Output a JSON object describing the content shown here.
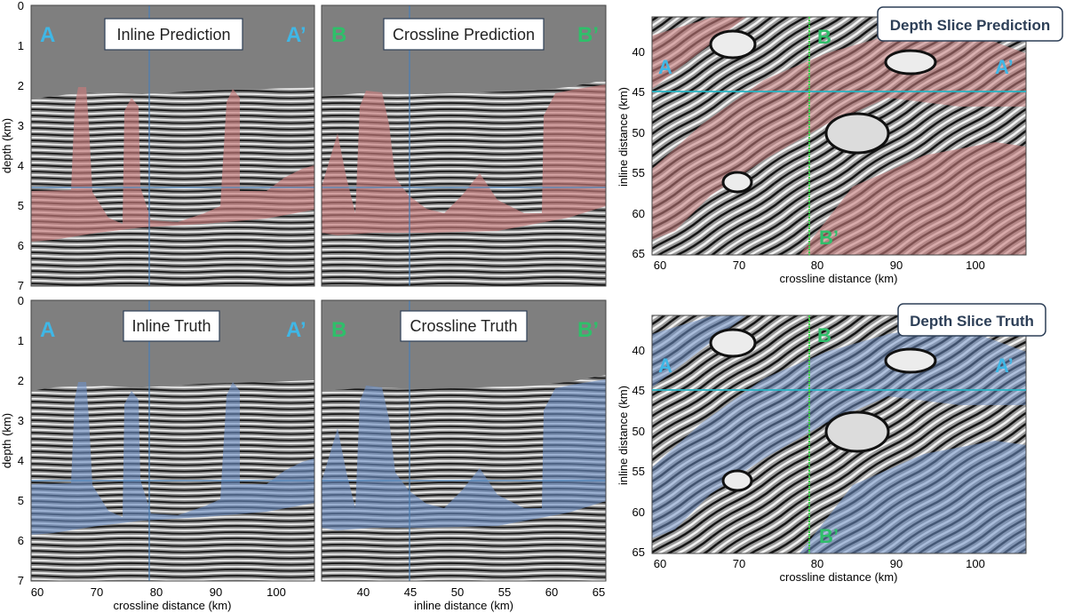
{
  "colors": {
    "background_gray": "#7f7f7f",
    "salt_pred": "#c77b7b",
    "salt_truth": "#6d8fc7",
    "label_blue": "#3fb7e6",
    "label_green": "#2fbf6a",
    "line_blue": "#4a7fb5",
    "line_cyan": "#25b5c4",
    "line_green": "#3fd04a",
    "title_border": "#2d3f57"
  },
  "panels": {
    "inline_pred": {
      "title": "Inline Prediction",
      "left_label": "A",
      "right_label": "A’"
    },
    "crossline_pred": {
      "title": "Crossline Prediction",
      "left_label": "B",
      "right_label": "B’"
    },
    "inline_truth": {
      "title": "Inline Truth",
      "left_label": "A",
      "right_label": "A’"
    },
    "crossline_truth": {
      "title": "Crossline Truth",
      "left_label": "B",
      "right_label": "B’"
    },
    "depth_pred": {
      "title": "Depth Slice Prediction",
      "a": "A",
      "a_prime": "A’",
      "b": "B",
      "b_prime": "B’"
    },
    "depth_truth": {
      "title": "Depth Slice Truth",
      "a": "A",
      "a_prime": "A’",
      "b": "B",
      "b_prime": "B’"
    }
  },
  "axes": {
    "depth_label": "depth (km)",
    "depth_ticks": [
      "0",
      "1",
      "2",
      "3",
      "4",
      "5",
      "6",
      "7"
    ],
    "depth_range": [
      0,
      7
    ],
    "crossline_label": "crossline distance (km)",
    "crossline_ticks": [
      "60",
      "70",
      "80",
      "90",
      "100"
    ],
    "crossline_range": [
      58.5,
      106
    ],
    "inline_label": "inline distance (km)",
    "inline_section_ticks": [
      "40",
      "45",
      "50",
      "55",
      "60",
      "65"
    ],
    "inline_section_range": [
      35.5,
      65.7
    ],
    "inline_slice_ticks": [
      "40",
      "45",
      "50",
      "55",
      "60",
      "65"
    ],
    "inline_slice_range": [
      36.3,
      65.8
    ]
  },
  "chart_data": [
    {
      "type": "image",
      "title": "Inline Prediction",
      "ylabel": "depth (km)",
      "ylim": [
        7,
        0
      ],
      "xlim": [
        58.5,
        106
      ],
      "section_line_depth_km": 4.5,
      "crossline_marker_km": 79
    },
    {
      "type": "image",
      "title": "Crossline Prediction",
      "ylim": [
        7,
        0
      ],
      "xlim": [
        35.5,
        65.7
      ],
      "section_line_depth_km": 4.5,
      "inline_marker_km": 45
    },
    {
      "type": "image",
      "title": "Depth Slice Prediction",
      "xlabel": "crossline distance (km)",
      "ylabel": "inline distance (km)",
      "xlim": [
        58.5,
        106
      ],
      "ylim": [
        65.8,
        36.3
      ],
      "a_line_inline_km": 45,
      "b_line_crossline_km": 79
    },
    {
      "type": "image",
      "title": "Inline Truth",
      "xlabel": "crossline distance (km)",
      "ylabel": "depth (km)",
      "ylim": [
        7,
        0
      ],
      "xlim": [
        58.5,
        106
      ],
      "section_line_depth_km": 4.5,
      "crossline_marker_km": 79
    },
    {
      "type": "image",
      "title": "Crossline Truth",
      "xlabel": "inline distance (km)",
      "ylim": [
        7,
        0
      ],
      "xlim": [
        35.5,
        65.7
      ],
      "section_line_depth_km": 4.5,
      "inline_marker_km": 45
    },
    {
      "type": "image",
      "title": "Depth Slice Truth",
      "xlabel": "crossline distance (km)",
      "ylabel": "inline distance (km)",
      "xlim": [
        58.5,
        106
      ],
      "ylim": [
        65.8,
        36.3
      ],
      "a_line_inline_km": 45,
      "b_line_crossline_km": 79
    }
  ]
}
